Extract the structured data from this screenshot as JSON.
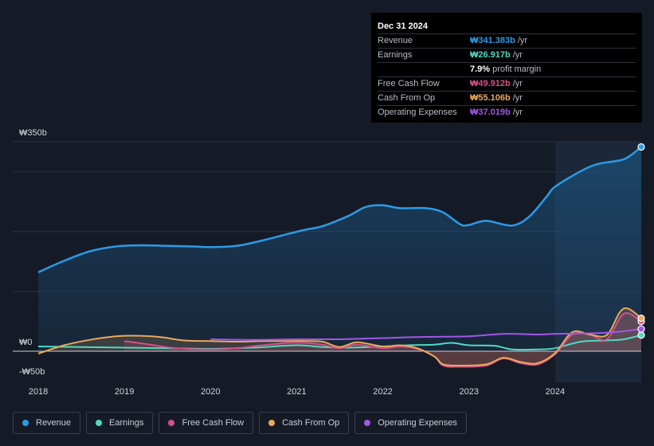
{
  "chart_data": {
    "type": "area",
    "currency": "₩",
    "y_labels": {
      "top": "₩350b",
      "zero": "₩0",
      "bottom": "-₩50b"
    },
    "ylim": [
      -50,
      350
    ],
    "xlim": [
      2018.0,
      2025.0
    ],
    "x_ticks": [
      "2018",
      "2019",
      "2020",
      "2021",
      "2022",
      "2023",
      "2024"
    ],
    "forecast_start": 2024.0,
    "series": [
      {
        "name": "Revenue",
        "color": "#2b9be8",
        "fill": true,
        "points": [
          [
            2018.0,
            132
          ],
          [
            2018.3,
            151
          ],
          [
            2018.6,
            167
          ],
          [
            2018.9,
            175
          ],
          [
            2019.2,
            177
          ],
          [
            2019.5,
            176
          ],
          [
            2019.8,
            175
          ],
          [
            2020.0,
            174
          ],
          [
            2020.3,
            176
          ],
          [
            2020.6,
            185
          ],
          [
            2020.9,
            196
          ],
          [
            2021.1,
            203
          ],
          [
            2021.3,
            209
          ],
          [
            2021.6,
            226
          ],
          [
            2021.8,
            241
          ],
          [
            2022.0,
            244
          ],
          [
            2022.2,
            239
          ],
          [
            2022.5,
            239
          ],
          [
            2022.7,
            232
          ],
          [
            2022.9,
            212
          ],
          [
            2023.0,
            211
          ],
          [
            2023.2,
            218
          ],
          [
            2023.5,
            210
          ],
          [
            2023.7,
            225
          ],
          [
            2023.9,
            258
          ],
          [
            2024.0,
            275
          ],
          [
            2024.3,
            301
          ],
          [
            2024.5,
            313
          ],
          [
            2024.8,
            321
          ],
          [
            2025.0,
            341.383
          ]
        ]
      },
      {
        "name": "Earnings",
        "color": "#4fd9c3",
        "fill": false,
        "points": [
          [
            2018.0,
            8
          ],
          [
            2018.5,
            7
          ],
          [
            2019.0,
            6
          ],
          [
            2019.5,
            5
          ],
          [
            2020.0,
            4
          ],
          [
            2020.5,
            6
          ],
          [
            2021.0,
            10
          ],
          [
            2021.3,
            7
          ],
          [
            2021.6,
            6
          ],
          [
            2022.0,
            8
          ],
          [
            2022.3,
            10
          ],
          [
            2022.6,
            11
          ],
          [
            2022.8,
            14
          ],
          [
            2023.0,
            10
          ],
          [
            2023.3,
            9
          ],
          [
            2023.5,
            3
          ],
          [
            2023.8,
            3
          ],
          [
            2024.0,
            5
          ],
          [
            2024.3,
            16
          ],
          [
            2024.6,
            18
          ],
          [
            2024.8,
            20
          ],
          [
            2025.0,
            26.917
          ]
        ]
      },
      {
        "name": "Free Cash Flow",
        "color": "#d64f88",
        "fill": true,
        "points": [
          [
            2019.0,
            17
          ],
          [
            2019.3,
            11
          ],
          [
            2019.6,
            5
          ],
          [
            2020.0,
            3
          ],
          [
            2020.3,
            5
          ],
          [
            2020.6,
            10
          ],
          [
            2020.9,
            14
          ],
          [
            2021.1,
            14
          ],
          [
            2021.3,
            11
          ],
          [
            2021.5,
            5
          ],
          [
            2021.7,
            11
          ],
          [
            2022.0,
            5
          ],
          [
            2022.2,
            8
          ],
          [
            2022.4,
            4
          ],
          [
            2022.6,
            -9
          ],
          [
            2022.7,
            -24
          ],
          [
            2022.9,
            -26
          ],
          [
            2023.2,
            -24
          ],
          [
            2023.4,
            -12
          ],
          [
            2023.6,
            -20
          ],
          [
            2023.8,
            -22
          ],
          [
            2024.0,
            -5
          ],
          [
            2024.2,
            28
          ],
          [
            2024.4,
            28
          ],
          [
            2024.6,
            20
          ],
          [
            2024.8,
            63
          ],
          [
            2025.0,
            49.912
          ]
        ]
      },
      {
        "name": "Cash From Op",
        "color": "#e8a85e",
        "fill": true,
        "points": [
          [
            2018.0,
            -4
          ],
          [
            2018.3,
            10
          ],
          [
            2018.6,
            19
          ],
          [
            2018.9,
            25
          ],
          [
            2019.1,
            26
          ],
          [
            2019.4,
            24
          ],
          [
            2019.7,
            18
          ],
          [
            2020.0,
            17
          ],
          [
            2020.3,
            16
          ],
          [
            2020.6,
            17
          ],
          [
            2020.9,
            17
          ],
          [
            2021.1,
            17
          ],
          [
            2021.3,
            16
          ],
          [
            2021.5,
            7
          ],
          [
            2021.7,
            15
          ],
          [
            2022.0,
            8
          ],
          [
            2022.2,
            10
          ],
          [
            2022.4,
            5
          ],
          [
            2022.6,
            -9
          ],
          [
            2022.7,
            -22
          ],
          [
            2022.9,
            -24
          ],
          [
            2023.2,
            -22
          ],
          [
            2023.4,
            -11
          ],
          [
            2023.6,
            -18
          ],
          [
            2023.8,
            -20
          ],
          [
            2024.0,
            -3
          ],
          [
            2024.2,
            32
          ],
          [
            2024.4,
            28
          ],
          [
            2024.6,
            27
          ],
          [
            2024.75,
            65
          ],
          [
            2024.85,
            71
          ],
          [
            2025.0,
            55.106
          ]
        ]
      },
      {
        "name": "Operating Expenses",
        "color": "#a257e8",
        "fill": false,
        "points": [
          [
            2020.0,
            20
          ],
          [
            2020.5,
            19
          ],
          [
            2021.0,
            20
          ],
          [
            2021.5,
            20
          ],
          [
            2022.0,
            22
          ],
          [
            2022.5,
            24
          ],
          [
            2023.0,
            25
          ],
          [
            2023.4,
            29
          ],
          [
            2023.8,
            28
          ],
          [
            2024.0,
            29
          ],
          [
            2024.4,
            30
          ],
          [
            2024.7,
            32
          ],
          [
            2025.0,
            37.019
          ]
        ]
      }
    ]
  },
  "tooltip": {
    "date": "Dec 31 2024",
    "rows": [
      {
        "label": "Revenue",
        "value": "₩341.383b",
        "unit": "/yr",
        "color": "#2b9be8"
      },
      {
        "label": "Earnings",
        "value": "₩26.917b",
        "unit": "/yr",
        "color": "#4fd9c3"
      },
      {
        "label": "",
        "value": "7.9%",
        "unit": "profit margin",
        "color": "#ffffff"
      },
      {
        "label": "Free Cash Flow",
        "value": "₩49.912b",
        "unit": "/yr",
        "color": "#d64f88"
      },
      {
        "label": "Cash From Op",
        "value": "₩55.106b",
        "unit": "/yr",
        "color": "#e8a85e"
      },
      {
        "label": "Operating Expenses",
        "value": "₩37.019b",
        "unit": "/yr",
        "color": "#a257e8"
      }
    ]
  },
  "legend": [
    {
      "label": "Revenue",
      "color": "#2b9be8"
    },
    {
      "label": "Earnings",
      "color": "#4fd9c3"
    },
    {
      "label": "Free Cash Flow",
      "color": "#d64f88"
    },
    {
      "label": "Cash From Op",
      "color": "#e8a85e"
    },
    {
      "label": "Operating Expenses",
      "color": "#a257e8"
    }
  ]
}
